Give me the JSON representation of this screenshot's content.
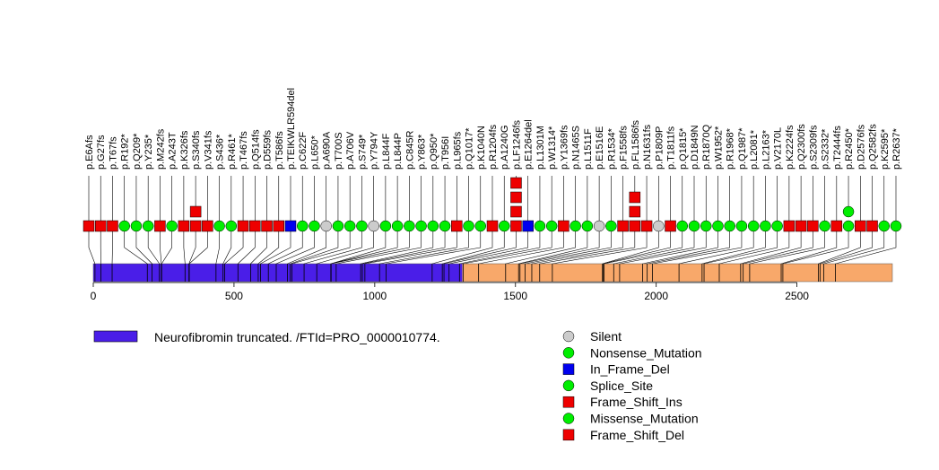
{
  "chart_data": {
    "type": "lollipop",
    "protein_length": 2839,
    "x_ticks": [
      0,
      500,
      1000,
      1500,
      2000,
      2500
    ],
    "domains": [
      {
        "name": "Neurofibromin truncated. /FTId=PRO_0000010774.",
        "start": 1,
        "end": 1311,
        "color": "#4a1ee8"
      },
      {
        "name": "",
        "start": 1312,
        "end": 2839,
        "color": "#f8a86a"
      }
    ],
    "domain_legend": "Neurofibromin truncated. /FTId=PRO_0000010774.",
    "mutations": [
      {
        "label": "p.E6Afs",
        "pos": 6,
        "type": "Frame_Shift_Del",
        "count": 1
      },
      {
        "label": "p.G27fs",
        "pos": 27,
        "type": "Frame_Shift_Del",
        "count": 1
      },
      {
        "label": "p.T67fs",
        "pos": 67,
        "type": "Frame_Shift_Del",
        "count": 1
      },
      {
        "label": "p.R192*",
        "pos": 192,
        "type": "Nonsense_Mutation",
        "count": 1
      },
      {
        "label": "p.Q209*",
        "pos": 209,
        "type": "Nonsense_Mutation",
        "count": 1
      },
      {
        "label": "p.Y235*",
        "pos": 235,
        "type": "Nonsense_Mutation",
        "count": 1
      },
      {
        "label": "p.M242fs",
        "pos": 242,
        "type": "Frame_Shift_Del",
        "count": 1
      },
      {
        "label": "p.A243T",
        "pos": 243,
        "type": "Missense_Mutation",
        "count": 1
      },
      {
        "label": "p.K326fs",
        "pos": 326,
        "type": "Frame_Shift_Del",
        "count": 1
      },
      {
        "label": "p.S340fs",
        "pos": 340,
        "type": "Frame_Shift_Del",
        "count": 2
      },
      {
        "label": "p.V341fs",
        "pos": 341,
        "type": "Frame_Shift_Del",
        "count": 1
      },
      {
        "label": "p.S436*",
        "pos": 436,
        "type": "Nonsense_Mutation",
        "count": 1
      },
      {
        "label": "p.R461*",
        "pos": 461,
        "type": "Nonsense_Mutation",
        "count": 1
      },
      {
        "label": "p.T467fs",
        "pos": 467,
        "type": "Frame_Shift_Del",
        "count": 1
      },
      {
        "label": "p.Q514fs",
        "pos": 514,
        "type": "Frame_Shift_Del",
        "count": 1
      },
      {
        "label": "p.D559fs",
        "pos": 559,
        "type": "Frame_Shift_Del",
        "count": 1
      },
      {
        "label": "p.T586fs",
        "pos": 586,
        "type": "Frame_Shift_Del",
        "count": 1
      },
      {
        "label": "p.TEIKWLR594del",
        "pos": 594,
        "type": "In_Frame_Del",
        "count": 1
      },
      {
        "label": "p.C622F",
        "pos": 622,
        "type": "Missense_Mutation",
        "count": 1
      },
      {
        "label": "p.L650*",
        "pos": 650,
        "type": "Nonsense_Mutation",
        "count": 1
      },
      {
        "label": "p.A690A",
        "pos": 690,
        "type": "Silent",
        "count": 1
      },
      {
        "label": "p.T700S",
        "pos": 700,
        "type": "Missense_Mutation",
        "count": 1
      },
      {
        "label": "p.A706V",
        "pos": 706,
        "type": "Missense_Mutation",
        "count": 1
      },
      {
        "label": "p.S749*",
        "pos": 749,
        "type": "Nonsense_Mutation",
        "count": 1
      },
      {
        "label": "p.Y794Y",
        "pos": 794,
        "type": "Silent",
        "count": 1
      },
      {
        "label": "p.L844F",
        "pos": 844,
        "type": "Missense_Mutation",
        "count": 1
      },
      {
        "label": "p.L844P",
        "pos": 844,
        "type": "Missense_Mutation",
        "count": 1
      },
      {
        "label": "p.C845R",
        "pos": 845,
        "type": "Missense_Mutation",
        "count": 1
      },
      {
        "label": "p.Y863*",
        "pos": 863,
        "type": "Nonsense_Mutation",
        "count": 1
      },
      {
        "label": "p.Q950*",
        "pos": 950,
        "type": "Nonsense_Mutation",
        "count": 1
      },
      {
        "label": "p.T956I",
        "pos": 956,
        "type": "Missense_Mutation",
        "count": 1
      },
      {
        "label": "p.L965fs",
        "pos": 965,
        "type": "Frame_Shift_Del",
        "count": 1
      },
      {
        "label": "p.Q1017*",
        "pos": 1017,
        "type": "Nonsense_Mutation",
        "count": 1
      },
      {
        "label": "p.K1040N",
        "pos": 1040,
        "type": "Missense_Mutation",
        "count": 1
      },
      {
        "label": "p.R1204fs",
        "pos": 1204,
        "type": "Frame_Shift_Del",
        "count": 1
      },
      {
        "label": "p.A1240G",
        "pos": 1240,
        "type": "Missense_Mutation",
        "count": 1
      },
      {
        "label": "p.LF1246fs",
        "pos": 1246,
        "type": "Frame_Shift_Ins",
        "count": 4
      },
      {
        "label": "p.E1264del",
        "pos": 1264,
        "type": "In_Frame_Del",
        "count": 1
      },
      {
        "label": "p.L1301M",
        "pos": 1301,
        "type": "Missense_Mutation",
        "count": 1
      },
      {
        "label": "p.W1314*",
        "pos": 1314,
        "type": "Nonsense_Mutation",
        "count": 1
      },
      {
        "label": "p.Y1369fs",
        "pos": 1369,
        "type": "Frame_Shift_Del",
        "count": 1
      },
      {
        "label": "p.N1465S",
        "pos": 1465,
        "type": "Missense_Mutation",
        "count": 1
      },
      {
        "label": "p.L1511F",
        "pos": 1511,
        "type": "Missense_Mutation",
        "count": 1
      },
      {
        "label": "p.E1516E",
        "pos": 1516,
        "type": "Silent",
        "count": 1
      },
      {
        "label": "p.R1534*",
        "pos": 1534,
        "type": "Nonsense_Mutation",
        "count": 1
      },
      {
        "label": "p.F1558fs",
        "pos": 1558,
        "type": "Frame_Shift_Del",
        "count": 1
      },
      {
        "label": "p.FL1586fs",
        "pos": 1586,
        "type": "Frame_Shift_Del",
        "count": 3
      },
      {
        "label": "p.N1631fs",
        "pos": 1631,
        "type": "Frame_Shift_Del",
        "count": 1
      },
      {
        "label": "p.P1809P",
        "pos": 1809,
        "type": "Silent",
        "count": 1
      },
      {
        "label": "p.T1811fs",
        "pos": 1811,
        "type": "Frame_Shift_Del",
        "count": 1
      },
      {
        "label": "p.Q1815*",
        "pos": 1815,
        "type": "Nonsense_Mutation",
        "count": 1
      },
      {
        "label": "p.D1849N",
        "pos": 1849,
        "type": "Missense_Mutation",
        "count": 1
      },
      {
        "label": "p.R1870Q",
        "pos": 1870,
        "type": "Missense_Mutation",
        "count": 1
      },
      {
        "label": "p.W1952*",
        "pos": 1952,
        "type": "Nonsense_Mutation",
        "count": 1
      },
      {
        "label": "p.R1968*",
        "pos": 1968,
        "type": "Nonsense_Mutation",
        "count": 1
      },
      {
        "label": "p.Q1987*",
        "pos": 1987,
        "type": "Nonsense_Mutation",
        "count": 1
      },
      {
        "label": "p.L2081*",
        "pos": 2081,
        "type": "Nonsense_Mutation",
        "count": 1
      },
      {
        "label": "p.L2163*",
        "pos": 2163,
        "type": "Nonsense_Mutation",
        "count": 1
      },
      {
        "label": "p.V2170L",
        "pos": 2170,
        "type": "Missense_Mutation",
        "count": 1
      },
      {
        "label": "p.K2224fs",
        "pos": 2224,
        "type": "Frame_Shift_Del",
        "count": 1
      },
      {
        "label": "p.Q2300fs",
        "pos": 2300,
        "type": "Frame_Shift_Del",
        "count": 1
      },
      {
        "label": "p.S2309fs",
        "pos": 2309,
        "type": "Frame_Shift_Del",
        "count": 1
      },
      {
        "label": "p.S2332*",
        "pos": 2332,
        "type": "Nonsense_Mutation",
        "count": 1
      },
      {
        "label": "p.T2444fs",
        "pos": 2444,
        "type": "Frame_Shift_Del",
        "count": 1
      },
      {
        "label": "p.R2450*",
        "pos": 2450,
        "type": "Nonsense_Mutation",
        "count": 2
      },
      {
        "label": "p.D2576fs",
        "pos": 2576,
        "type": "Frame_Shift_Del",
        "count": 1
      },
      {
        "label": "p.Q2582fs",
        "pos": 2582,
        "type": "Frame_Shift_Del",
        "count": 1
      },
      {
        "label": "p.K2595*",
        "pos": 2595,
        "type": "Nonsense_Mutation",
        "count": 1
      },
      {
        "label": "p.R2637*",
        "pos": 2637,
        "type": "Nonsense_Mutation",
        "count": 1
      }
    ],
    "legend": [
      {
        "label": "Silent",
        "shape": "circle",
        "color": "#cccccc"
      },
      {
        "label": "Nonsense_Mutation",
        "shape": "circle",
        "color": "#00ee00"
      },
      {
        "label": "In_Frame_Del",
        "shape": "square",
        "color": "#0000ee"
      },
      {
        "label": "Splice_Site",
        "shape": "circle",
        "color": "#00ee00"
      },
      {
        "label": "Frame_Shift_Ins",
        "shape": "square",
        "color": "#ee0000"
      },
      {
        "label": "Missense_Mutation",
        "shape": "circle",
        "color": "#00ee00"
      },
      {
        "label": "Frame_Shift_Del",
        "shape": "square",
        "color": "#ee0000"
      }
    ]
  }
}
